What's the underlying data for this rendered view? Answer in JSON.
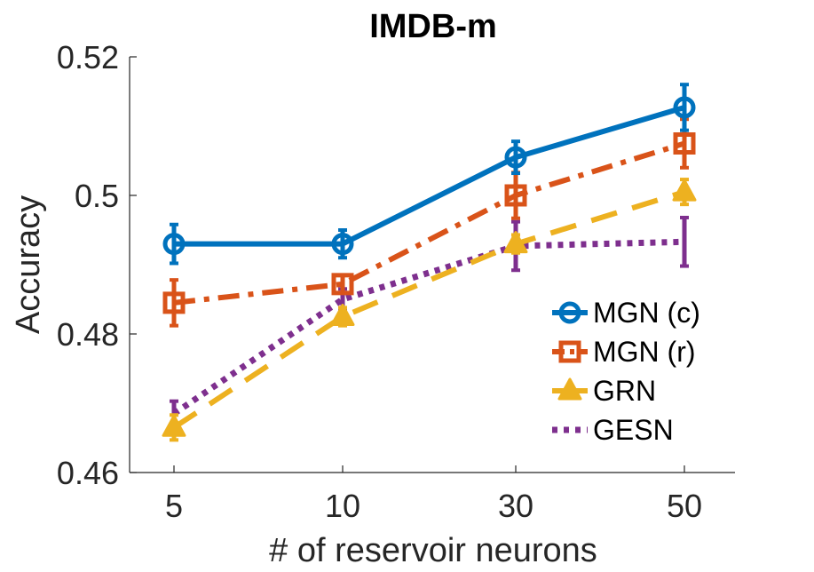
{
  "chart_data": {
    "type": "line",
    "title": "IMDB-m",
    "xlabel": "# of reservoir neurons",
    "ylabel": "Accuracy",
    "categories": [
      "5",
      "10",
      "30",
      "50"
    ],
    "ylim": [
      0.46,
      0.52
    ],
    "yticks": [
      0.46,
      0.48,
      0.5,
      0.52
    ],
    "ytick_labels": [
      "0.46",
      "0.48",
      "0.5",
      "0.52"
    ],
    "grid": false,
    "legend_position": "bottom-right",
    "series": [
      {
        "name": "MGN (c)",
        "values": [
          0.493,
          0.493,
          0.5055,
          0.5127
        ],
        "errors": [
          0.0028,
          0.002,
          0.0023,
          0.0033
        ],
        "color": "#0072BD",
        "marker": "circle",
        "line": "solid"
      },
      {
        "name": "MGN (r)",
        "values": [
          0.4845,
          0.4872,
          0.5,
          0.5075
        ],
        "errors": [
          0.0033,
          0.0013,
          0.0033,
          0.0035
        ],
        "color": "#D95319",
        "marker": "square",
        "line": "dashdot"
      },
      {
        "name": "GRN",
        "values": [
          0.4665,
          0.4825,
          0.493,
          0.5005
        ],
        "errors": [
          0.0018,
          0.0013,
          0.0013,
          0.0018
        ],
        "color": "#EDB120",
        "marker": "triangle",
        "line": "dashed"
      },
      {
        "name": "GESN",
        "values": [
          0.4685,
          0.485,
          0.4927,
          0.4933
        ],
        "errors": [
          0.0018,
          0.0015,
          0.0035,
          0.0035
        ],
        "color": "#7E2F8E",
        "marker": "none",
        "line": "dotted"
      }
    ]
  }
}
